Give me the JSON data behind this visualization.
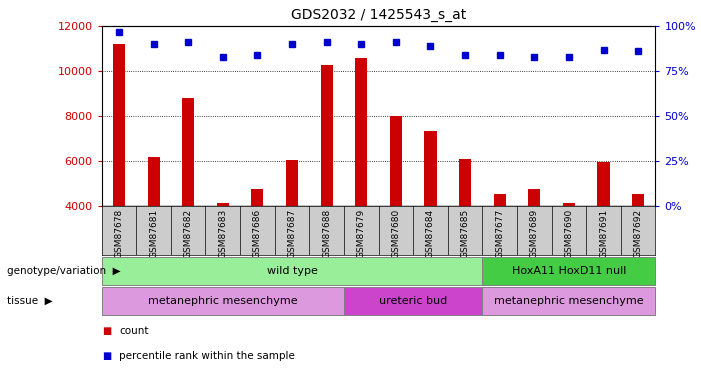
{
  "title": "GDS2032 / 1425543_s_at",
  "samples": [
    "GSM87678",
    "GSM87681",
    "GSM87682",
    "GSM87683",
    "GSM87686",
    "GSM87687",
    "GSM87688",
    "GSM87679",
    "GSM87680",
    "GSM87684",
    "GSM87685",
    "GSM87677",
    "GSM87689",
    "GSM87690",
    "GSM87691",
    "GSM87692"
  ],
  "counts": [
    11200,
    6200,
    8800,
    4150,
    4750,
    6050,
    10300,
    10600,
    8000,
    7350,
    6100,
    4550,
    4750,
    4150,
    5950,
    4550
  ],
  "percentile_ranks": [
    97,
    90,
    91,
    83,
    84,
    90,
    91,
    90,
    91,
    89,
    84,
    84,
    83,
    83,
    87,
    86
  ],
  "ylim_left": [
    4000,
    12000
  ],
  "ylim_right": [
    0,
    100
  ],
  "yticks_left": [
    4000,
    6000,
    8000,
    10000,
    12000
  ],
  "yticks_right": [
    0,
    25,
    50,
    75,
    100
  ],
  "bar_color": "#cc0000",
  "marker_color": "#0000cc",
  "chart_bg": "#ffffff",
  "xtick_bg": "#cccccc",
  "genotype_groups": [
    {
      "label": "wild type",
      "start": 0,
      "end": 11,
      "color": "#99ee99"
    },
    {
      "label": "HoxA11 HoxD11 null",
      "start": 11,
      "end": 16,
      "color": "#44cc44"
    }
  ],
  "tissue_groups": [
    {
      "label": "metanephric mesenchyme",
      "start": 0,
      "end": 7,
      "color": "#dd99dd"
    },
    {
      "label": "ureteric bud",
      "start": 7,
      "end": 11,
      "color": "#cc44cc"
    },
    {
      "label": "metanephric mesenchyme",
      "start": 11,
      "end": 16,
      "color": "#dd99dd"
    }
  ]
}
